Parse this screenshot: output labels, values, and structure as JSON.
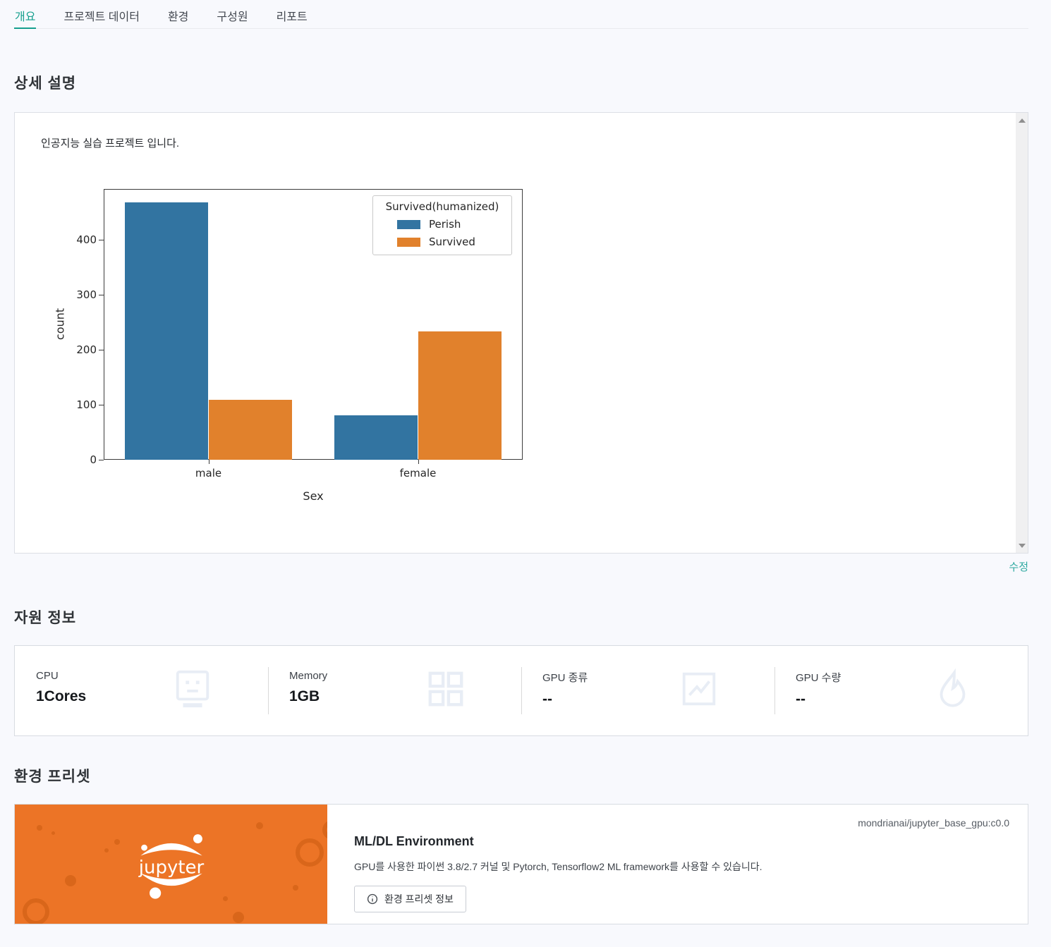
{
  "tabs": [
    {
      "label": "개요",
      "active": true
    },
    {
      "label": "프로젝트 데이터",
      "active": false
    },
    {
      "label": "환경",
      "active": false
    },
    {
      "label": "구성원",
      "active": false
    },
    {
      "label": "리포트",
      "active": false
    }
  ],
  "description": {
    "title": "상세 설명",
    "content": "인공지능 실습 프로젝트 입니다.",
    "edit_label": "수정"
  },
  "resources": {
    "title": "자원 정보",
    "items": [
      {
        "label": "CPU",
        "value": "1Cores",
        "icon": "cpu-robot-icon"
      },
      {
        "label": "Memory",
        "value": "1GB",
        "icon": "memory-grid-icon"
      },
      {
        "label": "GPU 종류",
        "value": "--",
        "icon": "gpu-chart-icon"
      },
      {
        "label": "GPU 수량",
        "value": "--",
        "icon": "gpu-flame-icon"
      }
    ]
  },
  "preset": {
    "title": "환경 프리셋",
    "image_tag": "mondrianai/jupyter_base_gpu:c0.0",
    "name": "ML/DL Environment",
    "description": "GPU를 사용한 파이썬 3.8/2.7 커널 및 Pytorch, Tensorflow2 ML framework를 사용할 수 있습니다.",
    "info_button_label": "환경 프리셋 정보",
    "logo_text": "jupyter"
  },
  "chart_data": {
    "type": "bar",
    "categories": [
      "male",
      "female"
    ],
    "series": [
      {
        "name": "Perish",
        "color": "#3274a1",
        "values": [
          468,
          81
        ]
      },
      {
        "name": "Survived",
        "color": "#e1812c",
        "values": [
          109,
          233
        ]
      }
    ],
    "legend_title": "Survived(humanized)",
    "legend_position": "upper right",
    "title": "",
    "xlabel": "Sex",
    "ylabel": "count",
    "yticks": [
      0,
      100,
      200,
      300,
      400
    ],
    "ylim": [
      0,
      492
    ],
    "grid": false
  },
  "colors": {
    "accent_teal": "#169f8e",
    "edit_link_teal": "#2ea9a0",
    "jupyter_orange": "#ec7426",
    "jupyter_orange_dark": "#d9661a",
    "bar_blue": "#3274a1",
    "bar_orange": "#e1812c",
    "page_background": "#f8f9fd"
  }
}
